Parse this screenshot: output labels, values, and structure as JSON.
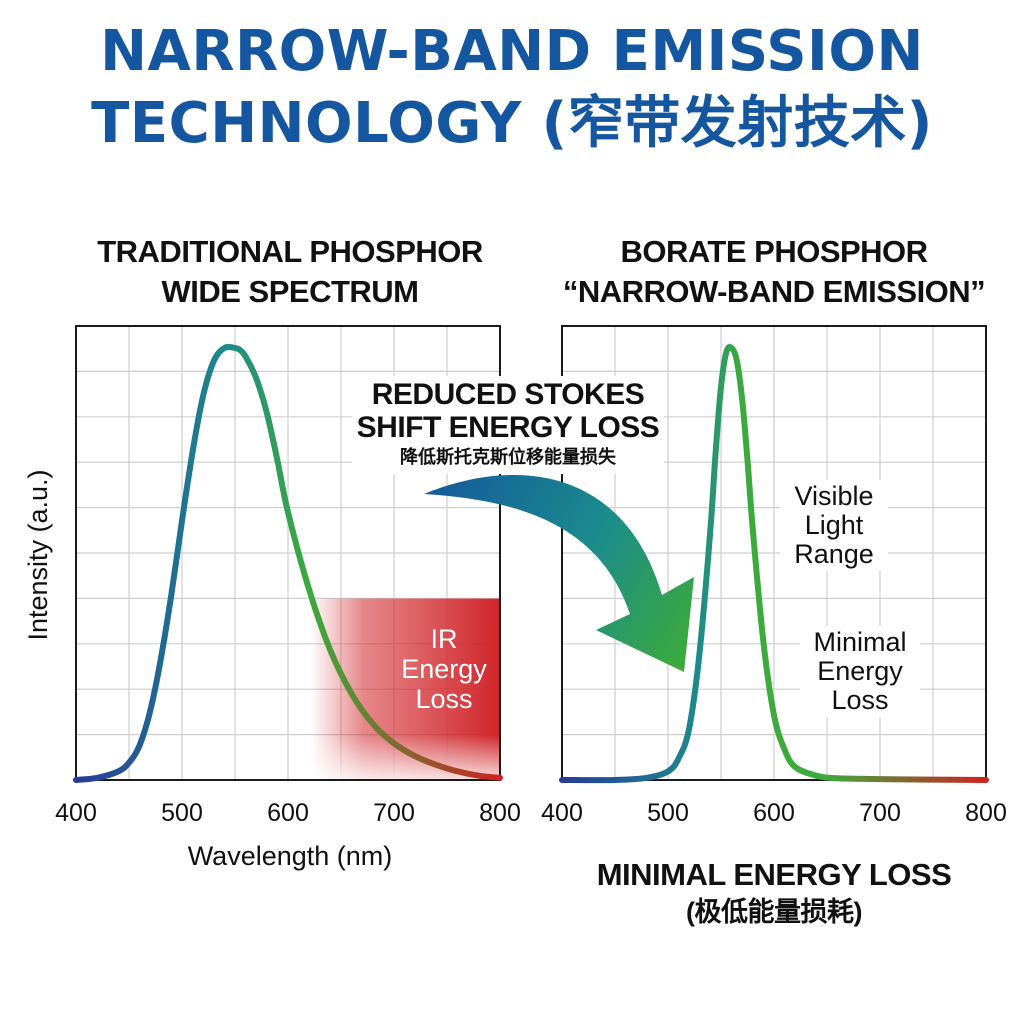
{
  "title": {
    "line1": "NARROW-BAND EMISSION",
    "line2": "TECHNOLOGY (窄带发射技术)"
  },
  "colors": {
    "title": "#1456a0",
    "ir_zone": "#d0252a",
    "curve_start": "#283a9a",
    "curve_mid": "#1c8a8c",
    "curve_green": "#3caa3c",
    "curve_end": "#cc2222"
  },
  "left": {
    "title_line1": "TRADITIONAL PHOSPHOR",
    "title_line2": "WIDE SPECTRUM",
    "ir_label": [
      "IR",
      "Energy",
      "Loss"
    ]
  },
  "right": {
    "title_line1": "BORATE PHOSPHOR",
    "title_line2": "“NARROW-BAND EMISSION”",
    "visible_label": [
      "Visible",
      "Light",
      "Range"
    ],
    "minimal_label": [
      "Minimal",
      "Energy",
      "Loss"
    ],
    "bottom_line1": "MINIMAL ENERGY LOSS",
    "bottom_line2": "(极低能量损耗)"
  },
  "annotation": {
    "line1": "REDUCED STOKES",
    "line2": "SHIFT ENERGY LOSS",
    "line3": "降低斯托克斯位移能量损失",
    "arrow_icon": "curved-arrow-icon"
  },
  "chart_data": [
    {
      "type": "line",
      "title": "TRADITIONAL PHOSPHOR WIDE SPECTRUM",
      "xlabel": "Wavelength (nm)",
      "ylabel": "Intensity (a.u.)",
      "xlim": [
        400,
        800
      ],
      "ylim": [
        0,
        1
      ],
      "x_ticks": [
        400,
        500,
        600,
        700,
        800
      ],
      "grid": true,
      "highlight_region": {
        "label": "IR Energy Loss",
        "x": [
          640,
          800
        ],
        "y_max": 0.42
      },
      "series": [
        {
          "x": [
            400,
            420,
            440,
            450,
            460,
            470,
            480,
            490,
            500,
            510,
            520,
            530,
            540,
            550,
            555,
            560,
            570,
            580,
            590,
            600,
            620,
            640,
            660,
            680,
            700,
            720,
            740,
            760,
            780,
            800
          ],
          "y": [
            0.0,
            0.005,
            0.02,
            0.04,
            0.08,
            0.16,
            0.28,
            0.43,
            0.6,
            0.76,
            0.89,
            0.97,
            1.0,
            1.0,
            0.995,
            0.98,
            0.93,
            0.85,
            0.74,
            0.62,
            0.44,
            0.3,
            0.2,
            0.13,
            0.085,
            0.055,
            0.035,
            0.02,
            0.01,
            0.005
          ]
        }
      ]
    },
    {
      "type": "line",
      "title": "BORATE PHOSPHOR “NARROW-BAND EMISSION”",
      "xlabel": "",
      "ylabel": "",
      "xlim": [
        400,
        800
      ],
      "ylim": [
        0,
        1
      ],
      "x_ticks": [
        400,
        500,
        600,
        700,
        800
      ],
      "grid": true,
      "series": [
        {
          "x": [
            400,
            450,
            480,
            500,
            510,
            520,
            530,
            540,
            545,
            550,
            555,
            560,
            565,
            570,
            575,
            580,
            590,
            600,
            610,
            620,
            640,
            660,
            700,
            750,
            800
          ],
          "y": [
            0.0,
            0.0,
            0.005,
            0.02,
            0.05,
            0.12,
            0.3,
            0.58,
            0.76,
            0.91,
            0.99,
            1.0,
            0.97,
            0.88,
            0.74,
            0.58,
            0.32,
            0.15,
            0.07,
            0.03,
            0.01,
            0.004,
            0.002,
            0.001,
            0.0
          ]
        }
      ]
    }
  ]
}
